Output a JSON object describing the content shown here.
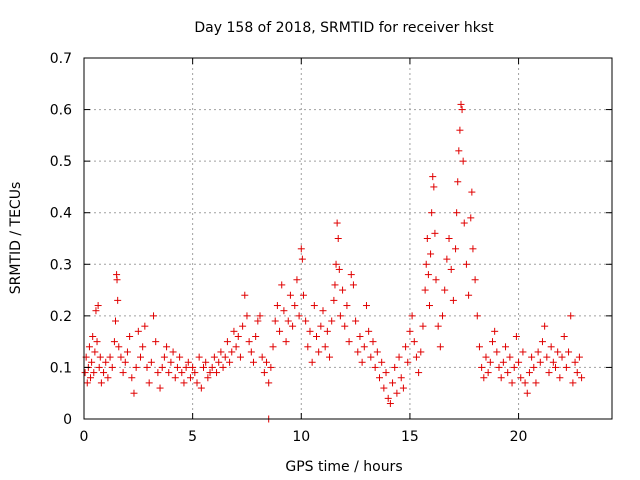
{
  "chart_data": {
    "type": "scatter",
    "title": "Day 158 of 2018, SRMTID for receiver hkst",
    "xlabel": "GPS time / hours",
    "ylabel": "SRMTID / TECUs",
    "xlim": [
      0,
      24.3
    ],
    "ylim": [
      0,
      0.7
    ],
    "xticks": [
      0,
      5,
      10,
      15,
      20
    ],
    "yticks": [
      0,
      0.1,
      0.2,
      0.3,
      0.4,
      0.5,
      0.6,
      0.7
    ],
    "xtick_labels": [
      "0",
      "5",
      "10",
      "15",
      "20"
    ],
    "ytick_labels": [
      "0",
      "0.1",
      "0.2",
      "0.3",
      "0.4",
      "0.5",
      "0.6",
      "0.7"
    ],
    "grid": true,
    "marker": "plus",
    "color": "#e00000",
    "series": [
      {
        "name": "SRMTID",
        "points": [
          [
            0.05,
            0.09
          ],
          [
            0.1,
            0.12
          ],
          [
            0.15,
            0.07
          ],
          [
            0.2,
            0.1
          ],
          [
            0.25,
            0.14
          ],
          [
            0.3,
            0.08
          ],
          [
            0.35,
            0.11
          ],
          [
            0.4,
            0.16
          ],
          [
            0.45,
            0.09
          ],
          [
            0.5,
            0.13
          ],
          [
            0.55,
            0.21
          ],
          [
            0.6,
            0.15
          ],
          [
            0.65,
            0.22
          ],
          [
            0.7,
            0.1
          ],
          [
            0.75,
            0.12
          ],
          [
            0.8,
            0.07
          ],
          [
            0.9,
            0.09
          ],
          [
            1.0,
            0.11
          ],
          [
            1.1,
            0.08
          ],
          [
            1.2,
            0.12
          ],
          [
            1.3,
            0.1
          ],
          [
            1.4,
            0.15
          ],
          [
            1.45,
            0.19
          ],
          [
            1.5,
            0.28
          ],
          [
            1.52,
            0.27
          ],
          [
            1.55,
            0.23
          ],
          [
            1.6,
            0.14
          ],
          [
            1.7,
            0.12
          ],
          [
            1.8,
            0.09
          ],
          [
            1.9,
            0.11
          ],
          [
            2.0,
            0.13
          ],
          [
            2.1,
            0.16
          ],
          [
            2.2,
            0.08
          ],
          [
            2.3,
            0.05
          ],
          [
            2.4,
            0.1
          ],
          [
            2.5,
            0.17
          ],
          [
            2.6,
            0.12
          ],
          [
            2.7,
            0.14
          ],
          [
            2.8,
            0.18
          ],
          [
            2.9,
            0.1
          ],
          [
            3.0,
            0.07
          ],
          [
            3.1,
            0.11
          ],
          [
            3.2,
            0.2
          ],
          [
            3.3,
            0.15
          ],
          [
            3.4,
            0.09
          ],
          [
            3.5,
            0.06
          ],
          [
            3.6,
            0.1
          ],
          [
            3.7,
            0.12
          ],
          [
            3.8,
            0.14
          ],
          [
            3.9,
            0.09
          ],
          [
            4.0,
            0.11
          ],
          [
            4.1,
            0.13
          ],
          [
            4.2,
            0.08
          ],
          [
            4.3,
            0.1
          ],
          [
            4.4,
            0.12
          ],
          [
            4.5,
            0.09
          ],
          [
            4.6,
            0.07
          ],
          [
            4.7,
            0.1
          ],
          [
            4.8,
            0.11
          ],
          [
            4.9,
            0.08
          ],
          [
            5.0,
            0.1
          ],
          [
            5.1,
            0.09
          ],
          [
            5.2,
            0.07
          ],
          [
            5.3,
            0.12
          ],
          [
            5.4,
            0.06
          ],
          [
            5.5,
            0.1
          ],
          [
            5.6,
            0.11
          ],
          [
            5.7,
            0.08
          ],
          [
            5.8,
            0.09
          ],
          [
            5.9,
            0.1
          ],
          [
            6.0,
            0.12
          ],
          [
            6.1,
            0.09
          ],
          [
            6.2,
            0.11
          ],
          [
            6.3,
            0.13
          ],
          [
            6.4,
            0.1
          ],
          [
            6.5,
            0.12
          ],
          [
            6.6,
            0.15
          ],
          [
            6.7,
            0.11
          ],
          [
            6.8,
            0.13
          ],
          [
            6.9,
            0.17
          ],
          [
            7.0,
            0.14
          ],
          [
            7.1,
            0.16
          ],
          [
            7.2,
            0.12
          ],
          [
            7.3,
            0.18
          ],
          [
            7.4,
            0.24
          ],
          [
            7.5,
            0.2
          ],
          [
            7.6,
            0.15
          ],
          [
            7.7,
            0.13
          ],
          [
            7.8,
            0.11
          ],
          [
            7.9,
            0.16
          ],
          [
            8.0,
            0.19
          ],
          [
            8.1,
            0.2
          ],
          [
            8.2,
            0.12
          ],
          [
            8.3,
            0.09
          ],
          [
            8.4,
            0.11
          ],
          [
            8.5,
            0.07
          ],
          [
            8.6,
            0.1
          ],
          [
            8.7,
            0.14
          ],
          [
            8.8,
            0.19
          ],
          [
            8.9,
            0.22
          ],
          [
            9.0,
            0.17
          ],
          [
            9.1,
            0.26
          ],
          [
            9.2,
            0.21
          ],
          [
            9.3,
            0.15
          ],
          [
            9.4,
            0.19
          ],
          [
            9.5,
            0.24
          ],
          [
            9.6,
            0.18
          ],
          [
            9.7,
            0.22
          ],
          [
            9.8,
            0.27
          ],
          [
            9.9,
            0.2
          ],
          [
            10.0,
            0.33
          ],
          [
            10.05,
            0.31
          ],
          [
            10.1,
            0.24
          ],
          [
            10.2,
            0.19
          ],
          [
            10.3,
            0.14
          ],
          [
            10.4,
            0.17
          ],
          [
            10.5,
            0.11
          ],
          [
            10.6,
            0.22
          ],
          [
            10.7,
            0.16
          ],
          [
            10.8,
            0.13
          ],
          [
            10.9,
            0.18
          ],
          [
            11.0,
            0.21
          ],
          [
            11.1,
            0.14
          ],
          [
            11.2,
            0.17
          ],
          [
            11.3,
            0.12
          ],
          [
            11.4,
            0.19
          ],
          [
            11.5,
            0.23
          ],
          [
            11.55,
            0.26
          ],
          [
            11.6,
            0.3
          ],
          [
            11.65,
            0.38
          ],
          [
            11.7,
            0.35
          ],
          [
            11.75,
            0.29
          ],
          [
            11.8,
            0.2
          ],
          [
            11.9,
            0.25
          ],
          [
            12.0,
            0.18
          ],
          [
            12.1,
            0.22
          ],
          [
            12.2,
            0.15
          ],
          [
            12.3,
            0.28
          ],
          [
            12.4,
            0.26
          ],
          [
            12.5,
            0.19
          ],
          [
            12.6,
            0.13
          ],
          [
            12.7,
            0.16
          ],
          [
            12.8,
            0.11
          ],
          [
            12.9,
            0.14
          ],
          [
            13.0,
            0.22
          ],
          [
            13.1,
            0.17
          ],
          [
            13.2,
            0.12
          ],
          [
            13.3,
            0.15
          ],
          [
            13.4,
            0.1
          ],
          [
            13.5,
            0.13
          ],
          [
            13.6,
            0.08
          ],
          [
            13.7,
            0.11
          ],
          [
            13.8,
            0.06
          ],
          [
            13.9,
            0.09
          ],
          [
            14.0,
            0.04
          ],
          [
            14.1,
            0.03
          ],
          [
            14.2,
            0.07
          ],
          [
            14.3,
            0.1
          ],
          [
            14.4,
            0.05
          ],
          [
            14.5,
            0.12
          ],
          [
            14.6,
            0.08
          ],
          [
            14.7,
            0.06
          ],
          [
            14.8,
            0.14
          ],
          [
            14.9,
            0.11
          ],
          [
            15.0,
            0.17
          ],
          [
            15.1,
            0.2
          ],
          [
            15.2,
            0.15
          ],
          [
            15.3,
            0.12
          ],
          [
            15.4,
            0.09
          ],
          [
            15.5,
            0.13
          ],
          [
            15.6,
            0.18
          ],
          [
            15.7,
            0.25
          ],
          [
            15.75,
            0.3
          ],
          [
            15.8,
            0.35
          ],
          [
            15.85,
            0.28
          ],
          [
            15.9,
            0.22
          ],
          [
            15.95,
            0.32
          ],
          [
            16.0,
            0.4
          ],
          [
            16.05,
            0.47
          ],
          [
            16.1,
            0.45
          ],
          [
            16.15,
            0.36
          ],
          [
            16.2,
            0.27
          ],
          [
            16.3,
            0.18
          ],
          [
            16.4,
            0.14
          ],
          [
            16.5,
            0.2
          ],
          [
            16.6,
            0.25
          ],
          [
            16.7,
            0.31
          ],
          [
            16.8,
            0.35
          ],
          [
            16.9,
            0.29
          ],
          [
            17.0,
            0.23
          ],
          [
            17.1,
            0.33
          ],
          [
            17.15,
            0.4
          ],
          [
            17.2,
            0.46
          ],
          [
            17.25,
            0.52
          ],
          [
            17.3,
            0.56
          ],
          [
            17.35,
            0.61
          ],
          [
            17.4,
            0.6
          ],
          [
            17.45,
            0.5
          ],
          [
            17.5,
            0.38
          ],
          [
            17.6,
            0.3
          ],
          [
            17.7,
            0.24
          ],
          [
            17.8,
            0.39
          ],
          [
            17.85,
            0.44
          ],
          [
            17.9,
            0.33
          ],
          [
            18.0,
            0.27
          ],
          [
            18.1,
            0.2
          ],
          [
            18.2,
            0.14
          ],
          [
            18.3,
            0.1
          ],
          [
            18.4,
            0.08
          ],
          [
            18.5,
            0.12
          ],
          [
            18.6,
            0.09
          ],
          [
            18.7,
            0.11
          ],
          [
            18.8,
            0.15
          ],
          [
            18.9,
            0.17
          ],
          [
            19.0,
            0.13
          ],
          [
            19.1,
            0.1
          ],
          [
            19.2,
            0.08
          ],
          [
            19.3,
            0.11
          ],
          [
            19.4,
            0.14
          ],
          [
            19.5,
            0.09
          ],
          [
            19.6,
            0.12
          ],
          [
            19.7,
            0.07
          ],
          [
            19.8,
            0.1
          ],
          [
            19.9,
            0.16
          ],
          [
            20.0,
            0.11
          ],
          [
            20.1,
            0.08
          ],
          [
            20.2,
            0.13
          ],
          [
            20.3,
            0.07
          ],
          [
            20.4,
            0.05
          ],
          [
            20.5,
            0.09
          ],
          [
            20.6,
            0.12
          ],
          [
            20.7,
            0.1
          ],
          [
            20.8,
            0.07
          ],
          [
            20.9,
            0.13
          ],
          [
            21.0,
            0.11
          ],
          [
            21.1,
            0.15
          ],
          [
            21.2,
            0.18
          ],
          [
            21.3,
            0.12
          ],
          [
            21.4,
            0.09
          ],
          [
            21.5,
            0.14
          ],
          [
            21.6,
            0.11
          ],
          [
            21.7,
            0.1
          ],
          [
            21.8,
            0.13
          ],
          [
            21.9,
            0.08
          ],
          [
            22.0,
            0.12
          ],
          [
            22.1,
            0.16
          ],
          [
            22.2,
            0.1
          ],
          [
            22.3,
            0.13
          ],
          [
            22.4,
            0.2
          ],
          [
            22.5,
            0.07
          ],
          [
            22.6,
            0.11
          ],
          [
            22.7,
            0.09
          ],
          [
            22.8,
            0.12
          ],
          [
            22.9,
            0.08
          ],
          [
            8.5,
            0.0
          ]
        ]
      }
    ]
  }
}
